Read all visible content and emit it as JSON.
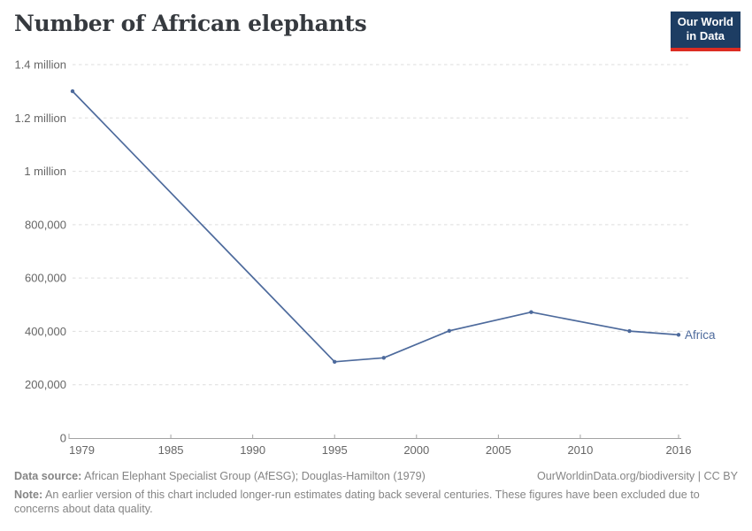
{
  "header": {
    "title": "Number of African elephants",
    "logo": {
      "line1": "Our World",
      "line2": "in Data",
      "bg": "#1d3d63",
      "accent": "#dc2c22"
    }
  },
  "chart_data": {
    "type": "line",
    "title": "Number of African elephants",
    "xlabel": "",
    "ylabel": "",
    "xlim": [
      1979,
      2016
    ],
    "ylim": [
      0,
      1400000
    ],
    "grid": "horizontal-dashed",
    "legend_position": "label-at-line-end",
    "x_ticks": [
      {
        "value": 1979,
        "label": "1979"
      },
      {
        "value": 1985,
        "label": "1985"
      },
      {
        "value": 1990,
        "label": "1990"
      },
      {
        "value": 1995,
        "label": "1995"
      },
      {
        "value": 2000,
        "label": "2000"
      },
      {
        "value": 2005,
        "label": "2005"
      },
      {
        "value": 2010,
        "label": "2010"
      },
      {
        "value": 2016,
        "label": "2016"
      }
    ],
    "y_ticks": [
      {
        "value": 0,
        "label": "0"
      },
      {
        "value": 200000,
        "label": "200,000"
      },
      {
        "value": 400000,
        "label": "400,000"
      },
      {
        "value": 600000,
        "label": "600,000"
      },
      {
        "value": 800000,
        "label": "800,000"
      },
      {
        "value": 1000000,
        "label": "1 million"
      },
      {
        "value": 1200000,
        "label": "1.2 million"
      },
      {
        "value": 1400000,
        "label": "1.4 million"
      }
    ],
    "series": [
      {
        "name": "Africa",
        "color": "#4d6a9c",
        "x": [
          1979,
          1995,
          1998,
          2002,
          2007,
          2013,
          2016
        ],
        "values": [
          1300000,
          286000,
          301000,
          402000,
          472000,
          401000,
          387000
        ]
      }
    ]
  },
  "footer": {
    "source_label": "Data source:",
    "source_text": " African Elephant Specialist Group (AfESG); Douglas-Hamilton (1979)",
    "attribution": "OurWorldinData.org/biodiversity | CC BY",
    "note_label": "Note:",
    "note_text": " An earlier version of this chart included longer-run estimates dating back several centuries. These figures have been excluded due to concerns about data quality."
  }
}
